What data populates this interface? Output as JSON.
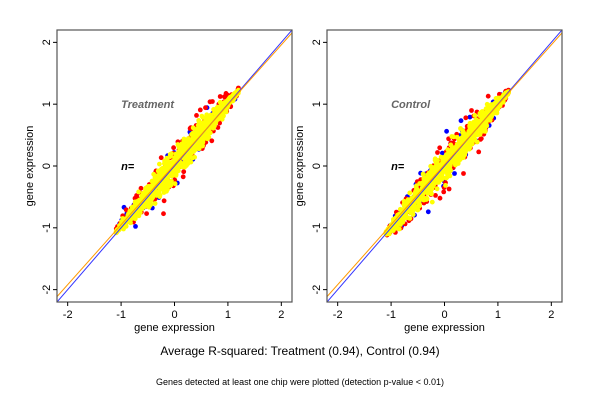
{
  "chart_data": [
    {
      "type": "scatter",
      "panel_label": "Treatment",
      "n_label": "n=",
      "xlabel": "gene expression",
      "ylabel": "gene expression",
      "xlim": [
        -2.2,
        2.2
      ],
      "ylim": [
        -2.2,
        2.2
      ],
      "xticks": [
        "-2",
        "-1",
        "0",
        "1",
        "2"
      ],
      "yticks": [
        "-2",
        "-1",
        "0",
        "1",
        "2"
      ],
      "tick_values": [
        -2,
        -1,
        0,
        1,
        2
      ],
      "grid": false,
      "lines": [
        {
          "name": "identity",
          "color": "#3333ff",
          "intercept": 0.0,
          "slope": 1.0
        },
        {
          "name": "fit",
          "color": "#ff9900",
          "intercept": 0.02,
          "slope": 0.97
        }
      ],
      "series": [
        {
          "name": "blue",
          "color": "#0000ff",
          "spread": 0.34,
          "x_range": [
            -1.1,
            1.15
          ],
          "bias": 0.05,
          "count": 60,
          "seed": 11
        },
        {
          "name": "red",
          "color": "#ff0000",
          "spread": 0.3,
          "x_range": [
            -1.1,
            1.2
          ],
          "bias": 0.06,
          "count": 260,
          "seed": 23
        },
        {
          "name": "yellow",
          "color": "#ffff00",
          "spread": 0.2,
          "x_range": [
            -1.1,
            1.2
          ],
          "bias": 0.02,
          "count": 900,
          "seed": 37
        }
      ]
    },
    {
      "type": "scatter",
      "panel_label": "Control",
      "n_label": "n=",
      "xlabel": "gene expression",
      "ylabel": "gene expression",
      "xlim": [
        -2.2,
        2.2
      ],
      "ylim": [
        -2.2,
        2.2
      ],
      "xticks": [
        "-2",
        "-1",
        "0",
        "1",
        "2"
      ],
      "yticks": [
        "-2",
        "-1",
        "0",
        "1",
        "2"
      ],
      "tick_values": [
        -2,
        -1,
        0,
        1,
        2
      ],
      "grid": false,
      "lines": [
        {
          "name": "identity",
          "color": "#3333ff",
          "intercept": 0.0,
          "slope": 1.0
        },
        {
          "name": "fit",
          "color": "#ff9900",
          "intercept": 0.02,
          "slope": 0.97
        }
      ],
      "series": [
        {
          "name": "blue",
          "color": "#0000ff",
          "spread": 0.34,
          "x_range": [
            -1.1,
            1.15
          ],
          "bias": 0.0,
          "count": 90,
          "seed": 41
        },
        {
          "name": "red",
          "color": "#ff0000",
          "spread": 0.32,
          "x_range": [
            -1.1,
            1.2
          ],
          "bias": 0.0,
          "count": 280,
          "seed": 53
        },
        {
          "name": "yellow",
          "color": "#ffff00",
          "spread": 0.2,
          "x_range": [
            -1.1,
            1.2
          ],
          "bias": 0.0,
          "count": 900,
          "seed": 67
        }
      ]
    }
  ],
  "captions": {
    "main": "Average R-squared: Treatment (0.94), Control (0.94)",
    "sub": "Genes detected at least one chip were plotted (detection p-value < 0.01)"
  }
}
